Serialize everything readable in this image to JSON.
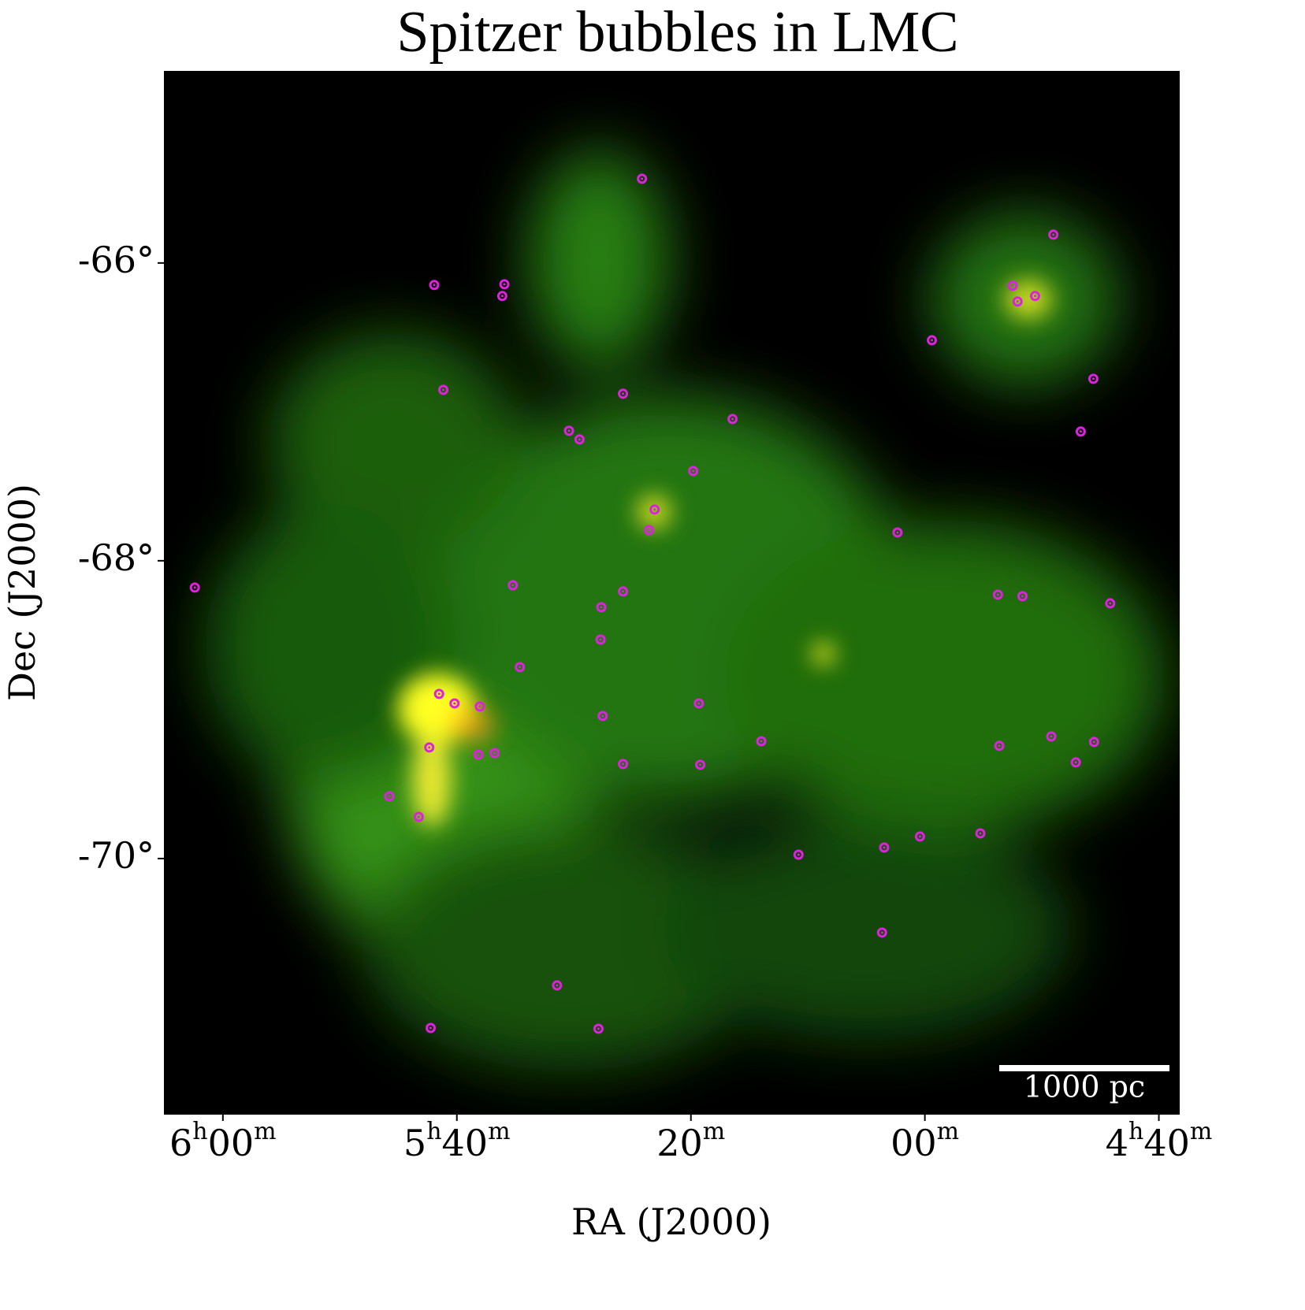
{
  "chart_data": {
    "type": "scatter",
    "title": "Spitzer bubbles in LMC",
    "xlabel": "RA (J2000)",
    "ylabel": "Dec (J2000)",
    "annotation": "1000 pc",
    "color": "#e020e0",
    "xlim": [
      6.084,
      4.637
    ],
    "ylim": [
      -71.72,
      -64.71
    ],
    "xticks": [
      {
        "value": 6,
        "label": "6h00m"
      },
      {
        "value": 5.6667,
        "label": "5h40m"
      },
      {
        "value": 5.3333,
        "label": "20m"
      },
      {
        "value": 5,
        "label": "00m"
      },
      {
        "value": 4.6667,
        "label": "4h40m"
      }
    ],
    "yticks": [
      {
        "value": -66,
        "label": "-66°"
      },
      {
        "value": -68,
        "label": "-68°"
      },
      {
        "value": -70,
        "label": "-70°"
      }
    ],
    "x": [
      5.403,
      4.817,
      5.699,
      5.599,
      5.602,
      4.875,
      4.843,
      4.868,
      4.99,
      5.686,
      5.43,
      4.76,
      5.274,
      5.492,
      5.507,
      4.778,
      5.33,
      5.385,
      5.393,
      5.039,
      5.587,
      5.43,
      5.461,
      4.896,
      4.861,
      4.736,
      5.462,
      5.577,
      5.322,
      5.692,
      5.67,
      5.634,
      5.459,
      5.233,
      4.82,
      4.759,
      5.706,
      5.636,
      5.613,
      5.32,
      5.43,
      4.785,
      5.763,
      5.721,
      4.921,
      5.007,
      5.058,
      5.18,
      5.061,
      5.524,
      5.704,
      5.465,
      6.04,
      4.894
    ],
    "y": [
      -65.434,
      -65.81,
      -66.148,
      -66.143,
      -66.222,
      -66.153,
      -66.222,
      -66.259,
      -66.519,
      -66.852,
      -66.878,
      -66.778,
      -67.048,
      -67.185,
      -67.127,
      -67.132,
      -67.397,
      -67.656,
      -67.794,
      -67.81,
      -68.164,
      -68.206,
      -68.312,
      -68.228,
      -68.238,
      -68.286,
      -68.529,
      -68.714,
      -68.958,
      -68.894,
      -68.958,
      -68.979,
      -69.042,
      -69.212,
      -69.18,
      -69.217,
      -69.254,
      -69.302,
      -69.291,
      -69.37,
      -69.365,
      -69.354,
      -69.582,
      -69.72,
      -69.831,
      -69.852,
      -69.926,
      -69.974,
      -70.497,
      -70.852,
      -71.138,
      -71.143,
      -68.18,
      -69.243
    ]
  }
}
